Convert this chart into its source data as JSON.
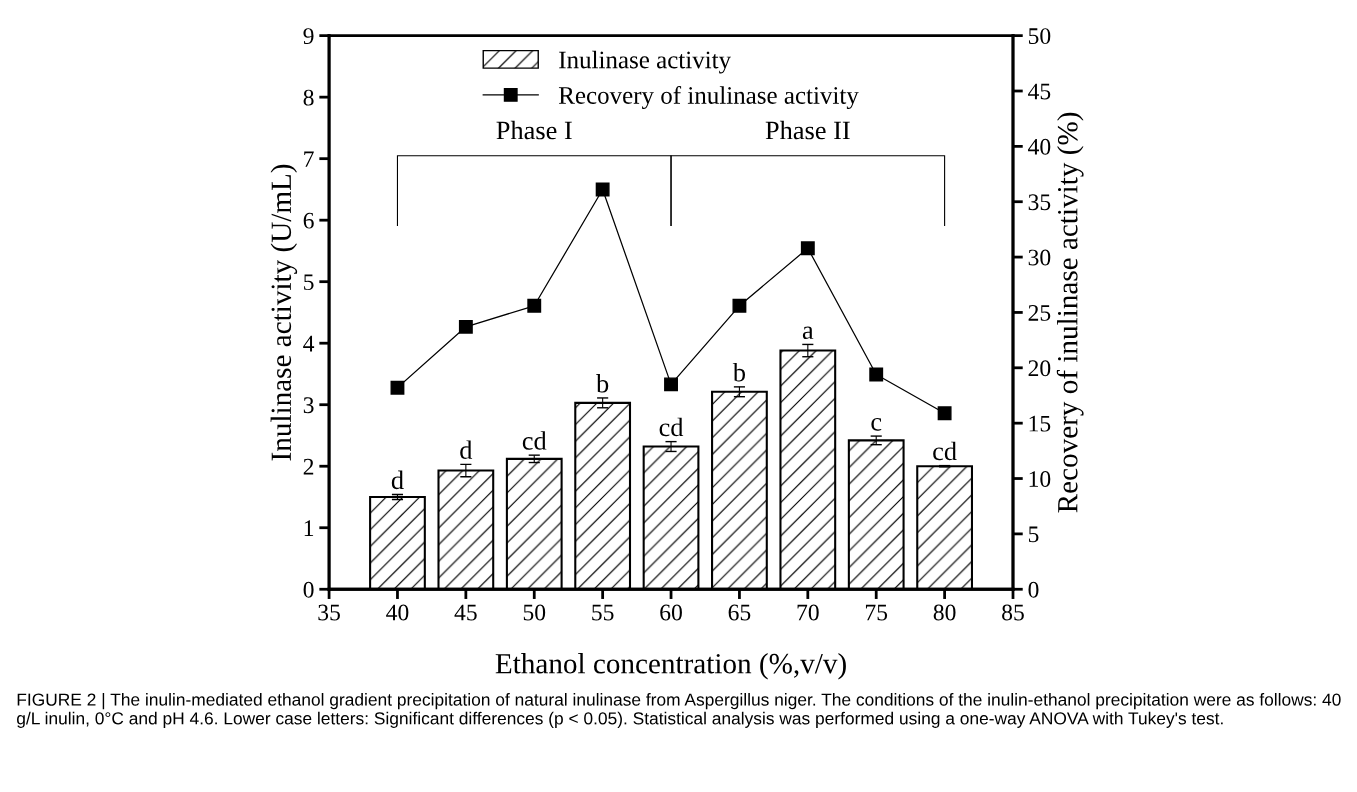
{
  "chart_data": {
    "type": "bar",
    "xlabel": "Ethanol concentration (%,v/v)",
    "ylabel": "Inulinase activity (U/mL)",
    "y2label": "Recovery of inulinase activity (%)",
    "x": [
      40,
      45,
      50,
      55,
      60,
      65,
      70,
      75,
      80
    ],
    "series": [
      {
        "name": "Inulinase activity",
        "color": "#000000",
        "values": [
          1.5,
          1.93,
          2.12,
          3.03,
          2.32,
          3.21,
          3.88,
          2.42,
          2.0
        ],
        "errors": [
          0.04,
          0.1,
          0.06,
          0.08,
          0.08,
          0.08,
          0.1,
          0.07,
          0.01
        ]
      },
      {
        "name": "Recovery of inulinase activity",
        "type": "line",
        "axis": "y2",
        "color": "#000000",
        "marker": "square",
        "line_style": "solid",
        "values": [
          18.2,
          23.7,
          25.6,
          36.1,
          18.5,
          25.6,
          30.8,
          19.4,
          15.9
        ]
      }
    ],
    "xlim": [
      35,
      85
    ],
    "xticks": [
      35,
      40,
      45,
      50,
      55,
      60,
      65,
      70,
      75,
      80,
      85
    ],
    "ylim": [
      0,
      9
    ],
    "yticks": [
      0,
      1,
      2,
      3,
      4,
      5,
      6,
      7,
      8,
      9
    ],
    "y2lim": [
      0,
      50
    ],
    "y2ticks": [
      0,
      5,
      10,
      15,
      20,
      25,
      30,
      35,
      40,
      45,
      50
    ],
    "legend": "top",
    "annotations": [
      {
        "text": "d",
        "x": 40,
        "y": 1.54
      },
      {
        "text": "d",
        "x": 45,
        "y": 2.03
      },
      {
        "text": "cd",
        "x": 50,
        "y": 2.18
      },
      {
        "text": "b",
        "x": 55,
        "y": 3.11
      },
      {
        "text": "cd",
        "x": 60,
        "y": 2.4
      },
      {
        "text": "b",
        "x": 65,
        "y": 3.29
      },
      {
        "text": "a",
        "x": 70,
        "y": 3.98
      },
      {
        "text": "c",
        "x": 75,
        "y": 2.49
      },
      {
        "text": "cd",
        "x": 80,
        "y": 2.01
      },
      "Phase I",
      "Phase II",
      "FIGURE 2 | The inulin-mediated ethanol gradient precipitation of natural inulinase from Aspergillus niger. The conditions of the inulin-ethanol precipitation were as follows: 40 g/L inulin, 0°C and pH 4.6. Lower case letters: Significant differences (p < 0.05). Statistical analysis was performed using a one-way ANOVA with Tukey's test."
    ]
  }
}
